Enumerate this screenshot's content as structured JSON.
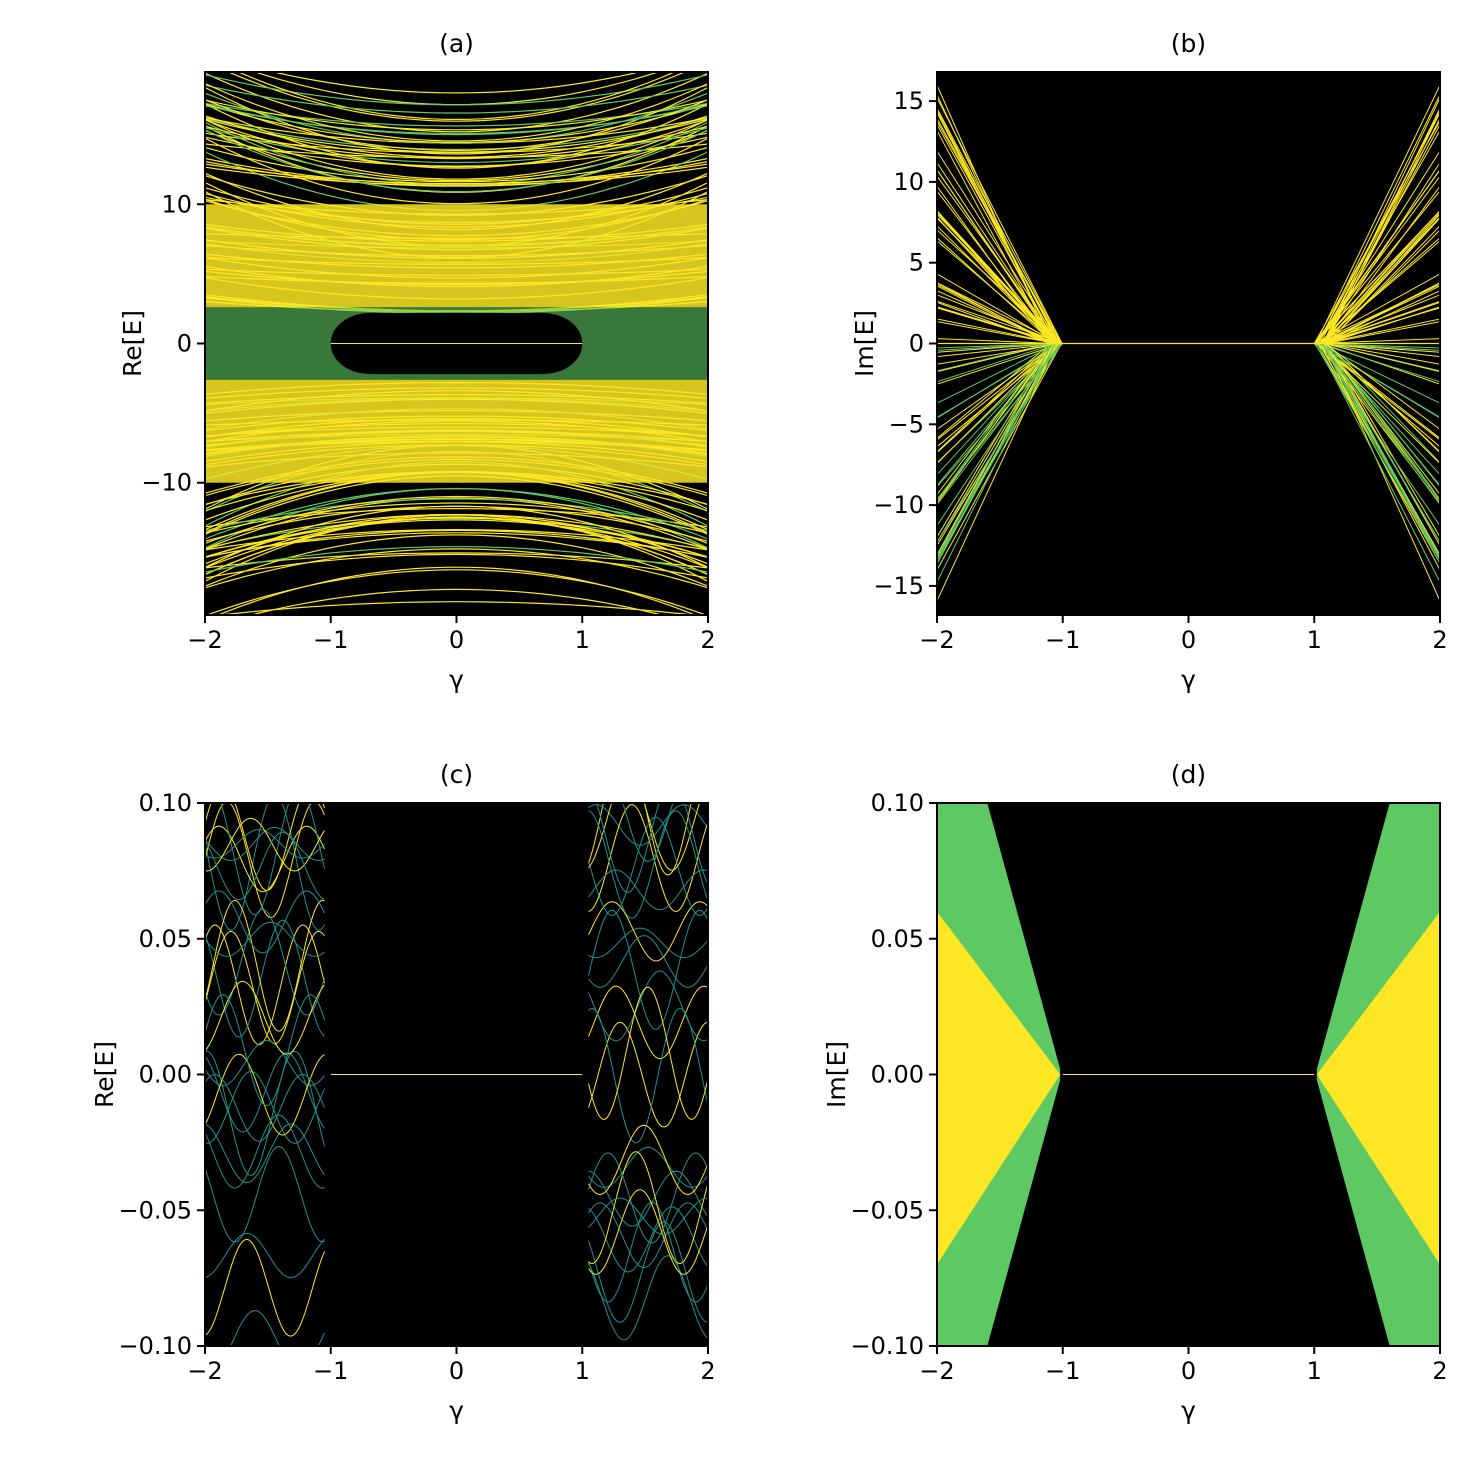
{
  "colors": {
    "background": "#000000",
    "high_density": "#fde725",
    "mid_density": "#5ec962",
    "low_density": "#21918c"
  },
  "chart_data": [
    {
      "type": "scatter",
      "title": "(a)",
      "xlabel": "γ",
      "ylabel": "Re[E]",
      "xlim": [
        -2,
        2
      ],
      "ylim": [
        -19.5,
        19.5
      ],
      "xticks": [
        -2,
        -1,
        0,
        1,
        2
      ],
      "xtick_labels": [
        "−2",
        "−1",
        "0",
        "1",
        "2"
      ],
      "yticks": [
        -10,
        0,
        10
      ],
      "ytick_labels": [
        "−10",
        "0",
        "10"
      ],
      "description_values": {
        "gap_gamma_range": [
          -1,
          1
        ],
        "gap_half_width": 2.2,
        "band_half_width": 19.5
      }
    },
    {
      "type": "scatter",
      "title": "(b)",
      "xlabel": "γ",
      "ylabel": "Im[E]",
      "xlim": [
        -2,
        2
      ],
      "ylim": [
        -16.8,
        16.8
      ],
      "xticks": [
        -2,
        -1,
        0,
        1,
        2
      ],
      "xtick_labels": [
        "−2",
        "−1",
        "0",
        "1",
        "2"
      ],
      "yticks": [
        -15,
        -10,
        -5,
        0,
        5,
        10,
        15
      ],
      "ytick_labels": [
        "−15",
        "−10",
        "−5",
        "0",
        "5",
        "10",
        "15"
      ],
      "description_values": {
        "real_spectrum_gamma_range": [
          -1,
          1
        ],
        "max_abs_im_at_edge": 16.6
      }
    },
    {
      "type": "scatter",
      "title": "(c)",
      "xlabel": "γ",
      "ylabel": "Re[E]",
      "xlim": [
        -2,
        2
      ],
      "ylim": [
        -0.1,
        0.1
      ],
      "xticks": [
        -2,
        -1,
        0,
        1,
        2
      ],
      "xtick_labels": [
        "−2",
        "−1",
        "0",
        "1",
        "2"
      ],
      "yticks": [
        -0.1,
        -0.05,
        0,
        0.05,
        0.1
      ],
      "ytick_labels": [
        "−0.10",
        "−0.05",
        "0.00",
        "0.05",
        "0.10"
      ],
      "description_values": {
        "zero_mode_gamma_range": [
          -1,
          1
        ]
      }
    },
    {
      "type": "scatter",
      "title": "(d)",
      "xlabel": "γ",
      "ylabel": "Im[E]",
      "xlim": [
        -2,
        2
      ],
      "ylim": [
        -0.1,
        0.1
      ],
      "xticks": [
        -2,
        -1,
        0,
        1,
        2
      ],
      "xtick_labels": [
        "−2",
        "−1",
        "0",
        "1",
        "2"
      ],
      "yticks": [
        -0.1,
        -0.05,
        0,
        0.05,
        0.1
      ],
      "ytick_labels": [
        "−0.10",
        "−0.05",
        "0.00",
        "0.05",
        "0.10"
      ],
      "description_values": {
        "zero_mode_gamma_range": [
          -1,
          1
        ]
      }
    }
  ]
}
